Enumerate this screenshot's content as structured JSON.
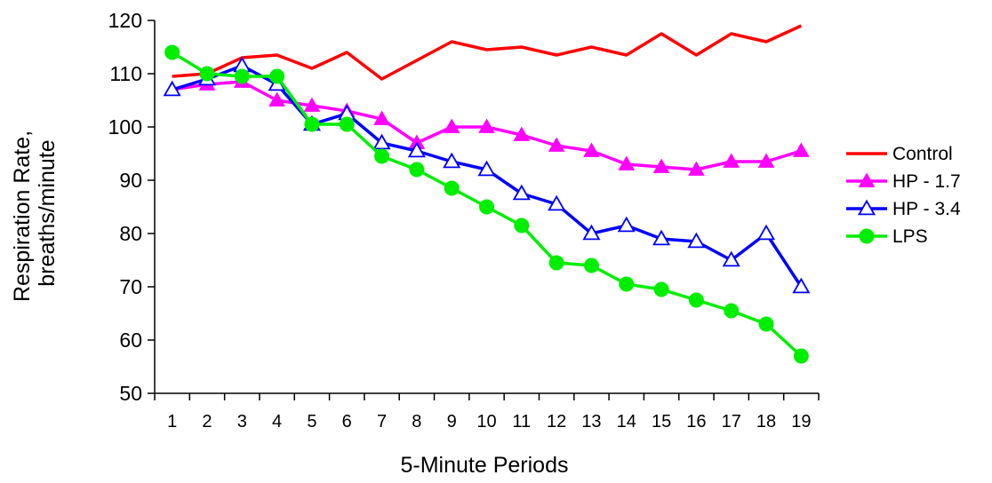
{
  "chart_data": {
    "type": "line",
    "title": "",
    "xlabel": "5-Minute Periods",
    "ylabel": [
      "Respiration Rate,",
      "breaths/minute"
    ],
    "x": [
      1,
      2,
      3,
      4,
      5,
      6,
      7,
      8,
      9,
      10,
      11,
      12,
      13,
      14,
      15,
      16,
      17,
      18,
      19
    ],
    "ylim": [
      50,
      120
    ],
    "yticks": [
      50,
      60,
      70,
      80,
      90,
      100,
      110,
      120
    ],
    "grid": false,
    "legend_position": "right",
    "series": [
      {
        "name": "Control",
        "color": "#ff0000",
        "marker": "none",
        "values": [
          109.5,
          110,
          113,
          113.5,
          111,
          114,
          109,
          112.5,
          116,
          114.5,
          115,
          113.5,
          115,
          113.5,
          117.5,
          113.5,
          117.5,
          116,
          119
        ]
      },
      {
        "name": "HP - 1.7",
        "color": "#ff00ff",
        "marker": "triangle-filled",
        "values": [
          107,
          108,
          108.5,
          105,
          104,
          103,
          101.5,
          97,
          100,
          100,
          98.5,
          96.5,
          95.5,
          93,
          92.5,
          92,
          93.5,
          93.5,
          95.5
        ]
      },
      {
        "name": "HP - 3.4",
        "color": "#0000ff",
        "marker": "triangle-open",
        "values": [
          107,
          109,
          111.5,
          108,
          100.5,
          102.5,
          97,
          95.5,
          93.5,
          92,
          87.5,
          85.5,
          80,
          81.5,
          79,
          78.5,
          75,
          80,
          70
        ]
      },
      {
        "name": "LPS",
        "color": "#00ee00",
        "marker": "circle-filled",
        "values": [
          114,
          110,
          109.5,
          109.5,
          100.5,
          100.5,
          94.5,
          92,
          88.5,
          85,
          81.5,
          74.5,
          74,
          70.5,
          69.5,
          67.5,
          65.5,
          63,
          57
        ]
      }
    ]
  }
}
